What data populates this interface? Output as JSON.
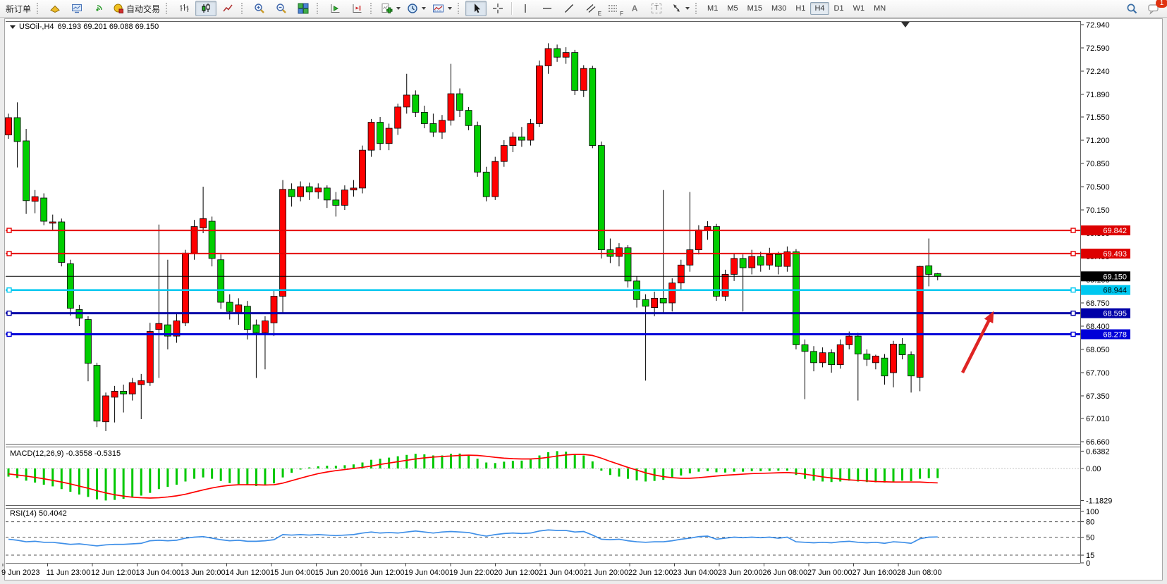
{
  "toolbar": {
    "new_order": "新订单",
    "auto_trading": "自动交易",
    "timeframes": [
      "M1",
      "M5",
      "M15",
      "M30",
      "H1",
      "H4",
      "D1",
      "W1",
      "MN"
    ],
    "active_timeframe": "H4",
    "notification_badge": "1",
    "tool_letter_a": "A",
    "tool_letter_t": "T",
    "channel_sub": "E",
    "fibo_sub": "F",
    "icons": [
      "market-watch-icon",
      "new-chart-icon",
      "signals-icon",
      "autotrading-icon",
      "bar-chart-icon",
      "candlestick-chart-icon",
      "line-chart-icon",
      "zoom-in-icon",
      "zoom-out-icon",
      "tile-windows-icon",
      "auto-scroll-icon",
      "chart-shift-icon",
      "indicators-icon",
      "periods-icon",
      "templates-icon",
      "cursor-icon",
      "crosshair-icon",
      "vertical-line-icon",
      "horizontal-line-icon",
      "trendline-icon",
      "equidistant-channel-icon",
      "fibonacci-icon",
      "text-icon",
      "text-label-icon",
      "arrows-icon",
      "search-icon",
      "chat-icon"
    ]
  },
  "chart": {
    "title": "USOil-,H4",
    "ohlc": "69.193 69.201 69.088 69.150"
  },
  "chart_data": {
    "type": "candlestick",
    "symbol": "USOil-",
    "timeframe": "H4",
    "ohlc_current": {
      "open": "69.193",
      "high": "69.201",
      "low": "69.088",
      "close": "69.150"
    },
    "bull_color": "#ff0000",
    "bear_color": "#00ce00",
    "price_ticks": [
      "72.940",
      "72.590",
      "72.240",
      "71.890",
      "71.550",
      "71.200",
      "70.850",
      "70.500",
      "70.150",
      "69.800",
      "69.450",
      "69.100",
      "68.750",
      "68.400",
      "68.050",
      "67.700",
      "67.350",
      "67.010",
      "66.660"
    ],
    "horizontal_lines": [
      {
        "price": 69.842,
        "label": "69.842",
        "color": "#e60000",
        "badge_bg": "#dd0000",
        "badge_fg": "#ffffff",
        "width": 2.2,
        "handles": true
      },
      {
        "price": 69.493,
        "label": "69.493",
        "color": "#e60000",
        "badge_bg": "#dd0000",
        "badge_fg": "#ffffff",
        "width": 2.2,
        "handles": true
      },
      {
        "price": 69.15,
        "label": "69.150",
        "color": "#000000",
        "badge_bg": "#000000",
        "badge_fg": "#ffffff",
        "width": 1,
        "handles": false
      },
      {
        "price": 68.944,
        "label": "68.944",
        "color": "#00c8f0",
        "badge_bg": "#00c8f0",
        "badge_fg": "#000000",
        "width": 2.5,
        "handles": true
      },
      {
        "price": 68.595,
        "label": "68.595",
        "color": "#0000a8",
        "badge_bg": "#0000a8",
        "badge_fg": "#ffffff",
        "width": 3,
        "handles": true
      },
      {
        "price": 68.278,
        "label": "68.278",
        "color": "#0000d8",
        "badge_bg": "#0000d8",
        "badge_fg": "#ffffff",
        "width": 3,
        "handles": true
      }
    ],
    "date_labels": [
      "9 Jun 2023",
      "11 Jun 23:00",
      "12 Jun 12:00",
      "13 Jun 04:00",
      "13 Jun 20:00",
      "14 Jun 12:00",
      "15 Jun 04:00",
      "15 Jun 20:00",
      "16 Jun 12:00",
      "19 Jun 04:00",
      "19 Jun 22:00",
      "20 Jun 12:00",
      "21 Jun 04:00",
      "21 Jun 20:00",
      "22 Jun 12:00",
      "23 Jun 04:00",
      "23 Jun 20:00",
      "26 Jun 08:00",
      "27 Jun 00:00",
      "27 Jun 16:00",
      "28 Jun 08:00"
    ],
    "candles": [
      [
        71.28,
        71.6,
        71.22,
        71.54
      ],
      [
        71.54,
        71.77,
        70.79,
        71.18
      ],
      [
        71.19,
        71.37,
        70.09,
        70.29
      ],
      [
        70.28,
        70.45,
        70.1,
        70.35
      ],
      [
        70.33,
        70.4,
        69.92,
        69.98
      ],
      [
        69.95,
        70.08,
        69.85,
        69.97
      ],
      [
        69.97,
        70.02,
        69.3,
        69.36
      ],
      [
        69.34,
        69.4,
        68.56,
        68.67
      ],
      [
        68.65,
        68.72,
        68.4,
        68.52
      ],
      [
        68.5,
        68.55,
        67.57,
        67.84
      ],
      [
        67.81,
        67.85,
        66.88,
        66.97
      ],
      [
        66.96,
        67.4,
        66.82,
        67.35
      ],
      [
        67.33,
        67.5,
        66.95,
        67.42
      ],
      [
        67.42,
        67.52,
        67.1,
        67.38
      ],
      [
        67.38,
        67.62,
        67.28,
        67.55
      ],
      [
        67.52,
        67.68,
        67.0,
        67.58
      ],
      [
        67.55,
        68.45,
        67.5,
        68.32
      ],
      [
        68.35,
        69.93,
        67.62,
        68.44
      ],
      [
        68.42,
        69.4,
        68.05,
        68.25
      ],
      [
        68.25,
        68.6,
        68.15,
        68.48
      ],
      [
        68.45,
        69.55,
        68.4,
        69.5
      ],
      [
        69.5,
        70.0,
        69.4,
        69.9
      ],
      [
        69.88,
        70.5,
        69.8,
        70.02
      ],
      [
        69.98,
        70.05,
        69.3,
        69.42
      ],
      [
        69.4,
        69.48,
        68.66,
        68.76
      ],
      [
        68.76,
        68.88,
        68.5,
        68.62
      ],
      [
        68.6,
        68.82,
        68.42,
        68.72
      ],
      [
        68.7,
        68.78,
        68.2,
        68.35
      ],
      [
        68.42,
        68.5,
        67.62,
        68.3
      ],
      [
        68.3,
        68.55,
        67.75,
        68.48
      ],
      [
        68.45,
        68.95,
        68.25,
        68.85
      ],
      [
        68.85,
        70.6,
        68.6,
        70.46
      ],
      [
        70.46,
        70.55,
        70.2,
        70.35
      ],
      [
        70.35,
        70.58,
        70.28,
        70.5
      ],
      [
        70.5,
        70.56,
        70.3,
        70.42
      ],
      [
        70.42,
        70.55,
        70.32,
        70.48
      ],
      [
        70.48,
        70.52,
        70.18,
        70.3
      ],
      [
        70.3,
        70.42,
        70.05,
        70.22
      ],
      [
        70.22,
        70.52,
        70.15,
        70.45
      ],
      [
        70.45,
        70.6,
        70.35,
        70.48
      ],
      [
        70.48,
        71.12,
        70.4,
        71.05
      ],
      [
        71.05,
        71.52,
        70.95,
        71.47
      ],
      [
        71.47,
        71.55,
        71.05,
        71.15
      ],
      [
        71.15,
        71.45,
        71.05,
        71.38
      ],
      [
        71.38,
        71.75,
        71.28,
        71.7
      ],
      [
        71.7,
        72.2,
        71.6,
        71.88
      ],
      [
        71.88,
        71.95,
        71.55,
        71.62
      ],
      [
        71.62,
        71.72,
        71.38,
        71.45
      ],
      [
        71.45,
        71.6,
        71.25,
        71.32
      ],
      [
        71.32,
        71.58,
        71.22,
        71.5
      ],
      [
        71.5,
        72.35,
        71.42,
        71.9
      ],
      [
        71.9,
        71.98,
        71.55,
        71.65
      ],
      [
        71.65,
        71.7,
        71.35,
        71.42
      ],
      [
        71.42,
        71.48,
        70.65,
        70.72
      ],
      [
        70.72,
        70.8,
        70.28,
        70.35
      ],
      [
        70.35,
        70.95,
        70.3,
        70.88
      ],
      [
        70.88,
        71.2,
        70.8,
        71.12
      ],
      [
        71.12,
        71.32,
        71.02,
        71.25
      ],
      [
        71.25,
        71.4,
        71.1,
        71.2
      ],
      [
        71.2,
        71.52,
        71.12,
        71.45
      ],
      [
        71.45,
        72.4,
        71.4,
        72.32
      ],
      [
        72.32,
        72.66,
        72.2,
        72.58
      ],
      [
        72.58,
        72.64,
        72.38,
        72.45
      ],
      [
        72.45,
        72.6,
        72.35,
        72.52
      ],
      [
        72.52,
        72.56,
        71.88,
        71.95
      ],
      [
        71.95,
        72.33,
        71.85,
        72.28
      ],
      [
        72.28,
        72.32,
        71.08,
        71.12
      ],
      [
        71.12,
        71.18,
        69.42,
        69.55
      ],
      [
        69.55,
        69.72,
        69.35,
        69.45
      ],
      [
        69.45,
        69.65,
        69.3,
        69.58
      ],
      [
        69.58,
        69.62,
        68.98,
        69.08
      ],
      [
        69.08,
        69.15,
        68.68,
        68.8
      ],
      [
        68.8,
        68.88,
        67.58,
        68.7
      ],
      [
        68.68,
        68.92,
        68.55,
        68.82
      ],
      [
        68.82,
        70.45,
        68.6,
        68.75
      ],
      [
        68.75,
        69.12,
        68.62,
        69.05
      ],
      [
        69.05,
        69.4,
        68.95,
        69.32
      ],
      [
        69.32,
        70.42,
        69.22,
        69.55
      ],
      [
        69.55,
        69.92,
        69.48,
        69.85
      ],
      [
        69.85,
        69.98,
        69.7,
        69.9
      ],
      [
        69.9,
        69.94,
        68.78,
        68.85
      ],
      [
        68.85,
        69.25,
        68.78,
        69.18
      ],
      [
        69.18,
        69.5,
        69.08,
        69.42
      ],
      [
        69.42,
        69.48,
        68.62,
        69.28
      ],
      [
        69.28,
        69.55,
        69.18,
        69.45
      ],
      [
        69.45,
        69.52,
        69.22,
        69.32
      ],
      [
        69.32,
        69.58,
        69.25,
        69.48
      ],
      [
        69.48,
        69.52,
        69.18,
        69.3
      ],
      [
        69.3,
        69.6,
        69.22,
        69.52
      ],
      [
        69.52,
        69.56,
        68.05,
        68.12
      ],
      [
        68.12,
        68.2,
        67.3,
        68.02
      ],
      [
        68.02,
        68.1,
        67.72,
        67.85
      ],
      [
        67.85,
        68.08,
        67.78,
        68.0
      ],
      [
        68.0,
        68.05,
        67.7,
        67.82
      ],
      [
        67.82,
        68.2,
        67.76,
        68.12
      ],
      [
        68.12,
        68.32,
        68.05,
        68.25
      ],
      [
        68.25,
        68.3,
        67.28,
        67.98
      ],
      [
        67.98,
        68.05,
        67.8,
        67.9
      ],
      [
        67.85,
        67.97,
        67.75,
        67.95
      ],
      [
        67.92,
        67.98,
        67.52,
        67.65
      ],
      [
        67.7,
        68.18,
        67.48,
        68.13
      ],
      [
        68.13,
        68.22,
        67.9,
        67.97
      ],
      [
        67.97,
        68.02,
        67.4,
        67.65
      ],
      [
        67.63,
        69.31,
        67.42,
        69.3
      ],
      [
        69.31,
        69.72,
        69.0,
        69.18
      ],
      [
        69.19,
        69.2,
        69.09,
        69.15
      ]
    ],
    "macd": {
      "label": "MACD(12,26,9) -0.3558 -0.5315",
      "axis": [
        "0.6382",
        "0.00",
        "-1.1829"
      ],
      "histogram_color": "#00c800",
      "signal_color": "#ff0000",
      "histogram": [
        -0.3,
        -0.35,
        -0.45,
        -0.52,
        -0.6,
        -0.66,
        -0.76,
        -0.86,
        -0.96,
        -1.05,
        -1.14,
        -1.18,
        -1.16,
        -1.12,
        -1.06,
        -1.0,
        -0.9,
        -0.76,
        -0.68,
        -0.6,
        -0.48,
        -0.38,
        -0.33,
        -0.38,
        -0.46,
        -0.54,
        -0.58,
        -0.62,
        -0.65,
        -0.62,
        -0.55,
        -0.33,
        -0.16,
        -0.04,
        0.04,
        0.08,
        0.1,
        0.1,
        0.12,
        0.15,
        0.22,
        0.32,
        0.36,
        0.4,
        0.45,
        0.5,
        0.54,
        0.52,
        0.48,
        0.48,
        0.54,
        0.55,
        0.5,
        0.36,
        0.22,
        0.2,
        0.25,
        0.28,
        0.29,
        0.33,
        0.48,
        0.6,
        0.64,
        0.62,
        0.52,
        0.48,
        0.26,
        -0.08,
        -0.24,
        -0.3,
        -0.38,
        -0.44,
        -0.48,
        -0.46,
        -0.42,
        -0.35,
        -0.26,
        -0.18,
        -0.12,
        -0.1,
        -0.14,
        -0.15,
        -0.12,
        -0.12,
        -0.1,
        -0.1,
        -0.09,
        -0.08,
        -0.08,
        -0.24,
        -0.38,
        -0.45,
        -0.48,
        -0.5,
        -0.48,
        -0.45,
        -0.48,
        -0.5,
        -0.51,
        -0.52,
        -0.48,
        -0.45,
        -0.47,
        -0.38,
        -0.36,
        -0.3558
      ],
      "signal": [
        -0.2,
        -0.24,
        -0.28,
        -0.33,
        -0.38,
        -0.44,
        -0.5,
        -0.57,
        -0.65,
        -0.73,
        -0.82,
        -0.9,
        -0.97,
        -1.02,
        -1.06,
        -1.08,
        -1.09,
        -1.08,
        -1.05,
        -1.01,
        -0.95,
        -0.87,
        -0.79,
        -0.72,
        -0.66,
        -0.62,
        -0.6,
        -0.6,
        -0.6,
        -0.61,
        -0.6,
        -0.54,
        -0.45,
        -0.36,
        -0.27,
        -0.19,
        -0.13,
        -0.08,
        -0.04,
        0.0,
        0.04,
        0.09,
        0.15,
        0.2,
        0.25,
        0.3,
        0.35,
        0.39,
        0.42,
        0.44,
        0.46,
        0.48,
        0.49,
        0.48,
        0.45,
        0.41,
        0.38,
        0.36,
        0.35,
        0.35,
        0.37,
        0.41,
        0.46,
        0.5,
        0.52,
        0.52,
        0.48,
        0.38,
        0.26,
        0.15,
        0.04,
        -0.06,
        -0.16,
        -0.24,
        -0.3,
        -0.34,
        -0.36,
        -0.36,
        -0.34,
        -0.31,
        -0.28,
        -0.25,
        -0.23,
        -0.21,
        -0.19,
        -0.18,
        -0.17,
        -0.16,
        -0.15,
        -0.17,
        -0.21,
        -0.26,
        -0.31,
        -0.35,
        -0.39,
        -0.42,
        -0.44,
        -0.46,
        -0.48,
        -0.49,
        -0.5,
        -0.5,
        -0.5,
        -0.5,
        -0.52,
        -0.5315
      ]
    },
    "rsi": {
      "label": "RSI(14) 50.4042",
      "axis": [
        "100",
        "80",
        "50",
        "15",
        "0"
      ],
      "levels": [
        80,
        50,
        15
      ],
      "color": "#3e8fe8",
      "series": [
        46,
        44,
        41,
        42,
        40,
        40,
        38,
        36,
        37,
        35,
        33,
        35,
        36,
        36,
        37,
        38,
        43,
        44,
        43,
        44,
        48,
        50,
        51,
        48,
        45,
        43,
        44,
        42,
        42,
        43,
        45,
        55,
        54,
        55,
        54,
        55,
        54,
        53,
        54,
        55,
        58,
        60,
        58,
        59,
        58,
        60,
        62,
        60,
        58,
        60,
        61,
        60,
        59,
        55,
        52,
        55,
        57,
        58,
        57,
        58,
        62,
        64,
        63,
        63,
        60,
        61,
        54,
        46,
        45,
        46,
        43,
        41,
        40,
        41,
        41,
        43,
        46,
        48,
        51,
        52,
        46,
        48,
        50,
        49,
        50,
        49,
        50,
        48,
        50,
        41,
        40,
        39,
        40,
        39,
        41,
        42,
        40,
        39,
        40,
        38,
        41,
        40,
        38,
        47,
        50,
        50.4
      ]
    },
    "annotations": {
      "arrow": {
        "from": [
          1365,
          529
        ],
        "to": [
          1407,
          446
        ],
        "color": "#df2423"
      },
      "shift_marker": {
        "x": 1284,
        "y": 31
      }
    }
  }
}
